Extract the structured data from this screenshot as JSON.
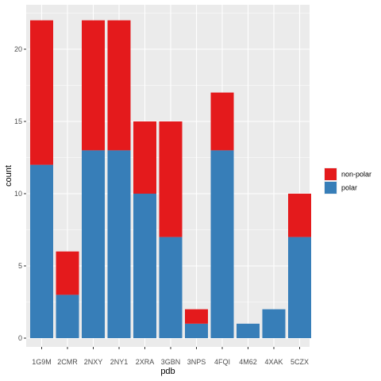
{
  "chart_data": {
    "type": "bar",
    "stacked": true,
    "categories": [
      "1G9M",
      "2CMR",
      "2NXY",
      "2NY1",
      "2XRA",
      "3GBN",
      "3NPS",
      "4FQI",
      "4M62",
      "4XAK",
      "5CZX"
    ],
    "series": [
      {
        "name": "polar",
        "color": "#377eb8",
        "values": [
          12,
          3,
          13,
          13,
          10,
          7,
          1,
          13,
          1,
          2,
          7
        ]
      },
      {
        "name": "non-polar",
        "color": "#e41a1c",
        "values": [
          10,
          3,
          9,
          9,
          5,
          8,
          1,
          4,
          0,
          0,
          3
        ]
      }
    ],
    "legend_order": [
      "non-polar",
      "polar"
    ],
    "xlabel": "pdb",
    "ylabel": "count",
    "ylim": [
      0,
      23
    ],
    "yticks": [
      0,
      5,
      10,
      15,
      20
    ],
    "grid": true,
    "legend_position": "right",
    "panel_background": "#ebebeb",
    "grid_color": "#ffffff"
  }
}
